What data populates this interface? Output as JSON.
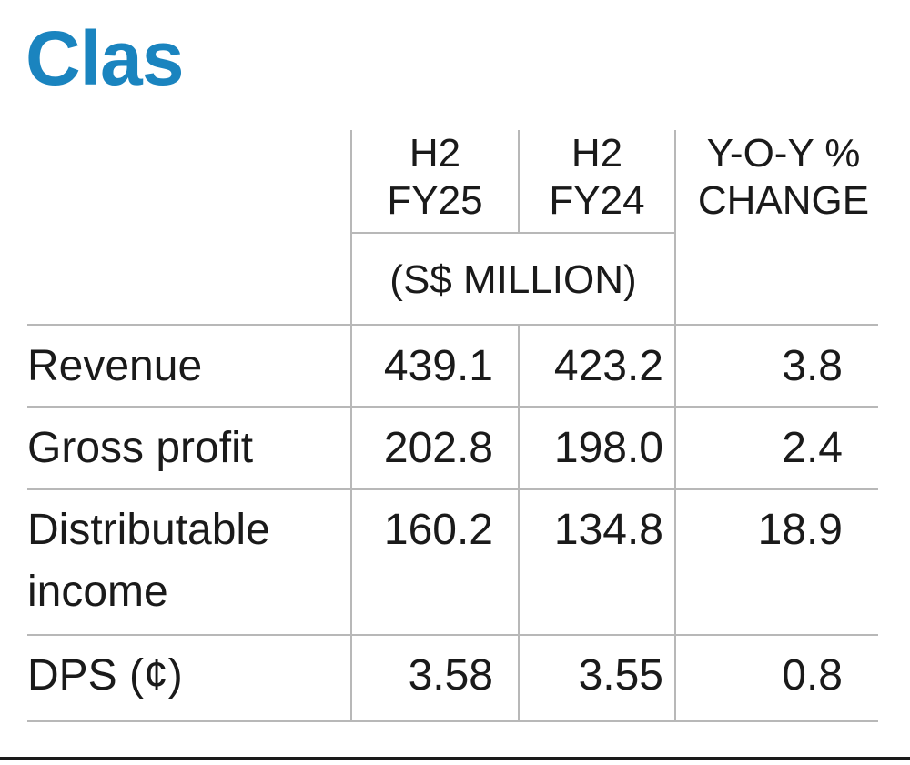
{
  "title": "Clas",
  "colors": {
    "title": "#1a84bf",
    "text": "#1a1a1a",
    "rule": "#b8b8b8"
  },
  "chart_data": {
    "type": "table",
    "title": "Clas",
    "columns": [
      {
        "line1": "H2",
        "line2": "FY25"
      },
      {
        "line1": "H2",
        "line2": "FY24"
      },
      {
        "line1": "Y-O-Y %",
        "line2": "CHANGE"
      }
    ],
    "unit": "(S$ MILLION)",
    "rows": [
      {
        "label": "Revenue",
        "label2": "",
        "values": [
          "439.1",
          "423.2",
          "3.8"
        ]
      },
      {
        "label": "Gross profit",
        "label2": "",
        "values": [
          "202.8",
          "198.0",
          "2.4"
        ]
      },
      {
        "label": "Distributable",
        "label2": "income",
        "values": [
          "160.2",
          "134.8",
          "18.9"
        ]
      },
      {
        "label": "DPS (¢)",
        "label2": "",
        "values": [
          "3.58",
          "3.55",
          "0.8"
        ]
      }
    ]
  }
}
